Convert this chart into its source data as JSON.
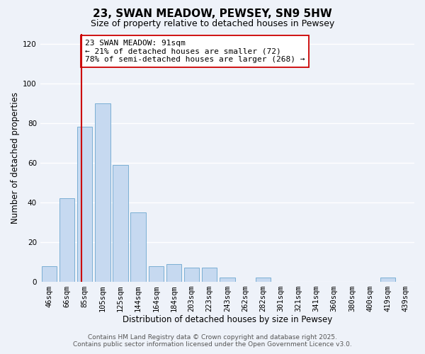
{
  "title": "23, SWAN MEADOW, PEWSEY, SN9 5HW",
  "subtitle": "Size of property relative to detached houses in Pewsey",
  "xlabel": "Distribution of detached houses by size in Pewsey",
  "ylabel": "Number of detached properties",
  "bar_labels": [
    "46sqm",
    "66sqm",
    "85sqm",
    "105sqm",
    "125sqm",
    "144sqm",
    "164sqm",
    "184sqm",
    "203sqm",
    "223sqm",
    "243sqm",
    "262sqm",
    "282sqm",
    "301sqm",
    "321sqm",
    "341sqm",
    "360sqm",
    "380sqm",
    "400sqm",
    "419sqm",
    "439sqm"
  ],
  "bar_values": [
    8,
    42,
    78,
    90,
    59,
    35,
    8,
    9,
    7,
    7,
    2,
    0,
    2,
    0,
    0,
    0,
    0,
    0,
    0,
    2,
    0
  ],
  "bar_color": "#c6d9f0",
  "bar_edge_color": "#7bafd4",
  "vline_color": "#cc0000",
  "vline_xindex": 2,
  "ylim": [
    0,
    125
  ],
  "yticks": [
    0,
    20,
    40,
    60,
    80,
    100,
    120
  ],
  "annotation_line1": "23 SWAN MEADOW: 91sqm",
  "annotation_line2": "← 21% of detached houses are smaller (72)",
  "annotation_line3": "78% of semi-detached houses are larger (268) →",
  "footer_line1": "Contains HM Land Registry data © Crown copyright and database right 2025.",
  "footer_line2": "Contains public sector information licensed under the Open Government Licence v3.0.",
  "background_color": "#eef2f9",
  "grid_color": "#ffffff",
  "title_fontsize": 11,
  "subtitle_fontsize": 9,
  "axis_label_fontsize": 8.5,
  "tick_fontsize": 7.5,
  "annotation_fontsize": 8,
  "footer_fontsize": 6.5
}
